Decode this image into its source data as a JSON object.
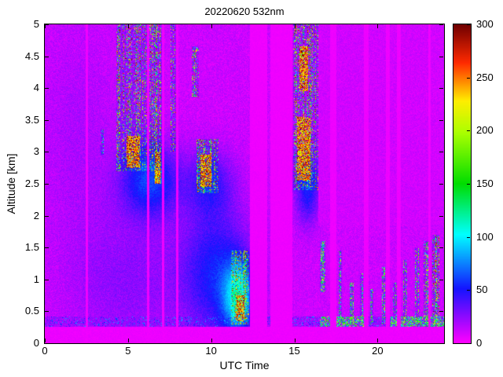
{
  "chart_data": {
    "type": "heatmap",
    "title": "20220620 532nm",
    "xlabel": "UTC Time",
    "ylabel": "Altitude [km]",
    "xlim": [
      0,
      24
    ],
    "ylim": [
      0,
      5
    ],
    "xticks": [
      0,
      5,
      10,
      15,
      20
    ],
    "yticks": [
      0,
      0.5,
      1,
      1.5,
      2,
      2.5,
      3,
      3.5,
      4,
      4.5,
      5
    ],
    "grid": false,
    "legend": "none",
    "colorbar": {
      "position": "right",
      "min": 0,
      "max": 300,
      "ticks": [
        0,
        50,
        100,
        150,
        200,
        250,
        300
      ]
    },
    "colormap": [
      [
        0.0,
        "#ff00ff"
      ],
      [
        0.17,
        "#1414ff"
      ],
      [
        0.34,
        "#00ffff"
      ],
      [
        0.5,
        "#00dd00"
      ],
      [
        0.66,
        "#aaff00"
      ],
      [
        0.76,
        "#ffee00"
      ],
      [
        0.88,
        "#ff2a00"
      ],
      [
        1.0,
        "#700000"
      ]
    ],
    "background_value_range": [
      4,
      18
    ],
    "features": {
      "gaps": [
        {
          "t0": 2.45,
          "t1": 2.62
        },
        {
          "t0": 6.15,
          "t1": 6.3
        },
        {
          "t0": 7.05,
          "t1": 7.2
        },
        {
          "t0": 7.9,
          "t1": 8.05
        },
        {
          "t0": 12.35,
          "t1": 13.35
        },
        {
          "t0": 13.55,
          "t1": 14.9
        },
        {
          "t0": 17.15,
          "t1": 17.55
        },
        {
          "t0": 19.2,
          "t1": 19.45
        },
        {
          "t0": 20.5,
          "t1": 20.75
        },
        {
          "t0": 21.15,
          "t1": 21.4
        },
        {
          "t0": 23.05,
          "t1": 23.2
        }
      ],
      "haze": [
        {
          "tc": 6.3,
          "zc": 2.55,
          "tw": 1.7,
          "zw": 0.55,
          "amp": 50
        },
        {
          "tc": 10.3,
          "zc": 1.1,
          "tw": 2.0,
          "zw": 1.0,
          "amp": 40
        },
        {
          "tc": 11.6,
          "zc": 0.7,
          "tw": 0.9,
          "zw": 0.55,
          "amp": 75
        },
        {
          "tc": 9.9,
          "zc": 2.5,
          "tw": 1.4,
          "zw": 0.5,
          "amp": 30
        },
        {
          "tc": 15.8,
          "zc": 2.4,
          "tw": 0.7,
          "zw": 0.5,
          "amp": 40
        },
        {
          "tc": 5.0,
          "zc": 1.0,
          "tw": 3.5,
          "zw": 1.1,
          "amp": 14
        },
        {
          "tc": 2.0,
          "zc": 3.2,
          "tw": 2.2,
          "zw": 1.6,
          "amp": 7
        }
      ],
      "clouds": [
        {
          "t0": 4.3,
          "t1": 6.6,
          "z0": 2.7,
          "z1": 5.0,
          "density": 0.45,
          "vmin": 50,
          "vmax": 300
        },
        {
          "t0": 6.55,
          "t1": 7.15,
          "z0": 2.5,
          "z1": 5.0,
          "density": 0.5,
          "vmin": 50,
          "vmax": 300
        },
        {
          "t0": 7.55,
          "t1": 8.0,
          "z0": 3.0,
          "z1": 5.0,
          "density": 0.45,
          "vmin": 50,
          "vmax": 300
        },
        {
          "t0": 8.85,
          "t1": 9.25,
          "z0": 3.85,
          "z1": 4.65,
          "density": 0.5,
          "vmin": 60,
          "vmax": 280
        },
        {
          "t0": 9.1,
          "t1": 10.45,
          "z0": 2.35,
          "z1": 3.2,
          "density": 0.55,
          "vmin": 60,
          "vmax": 300
        },
        {
          "t0": 11.2,
          "t1": 12.3,
          "z0": 0.3,
          "z1": 1.45,
          "density": 0.6,
          "vmin": 60,
          "vmax": 300
        },
        {
          "t0": 14.95,
          "t1": 16.45,
          "z0": 2.4,
          "z1": 5.0,
          "density": 0.5,
          "vmin": 50,
          "vmax": 300
        },
        {
          "t0": 16.55,
          "t1": 16.85,
          "z0": 0.8,
          "z1": 1.6,
          "density": 0.5,
          "vmin": 60,
          "vmax": 220
        },
        {
          "t0": 17.65,
          "t1": 17.85,
          "z0": 0.3,
          "z1": 1.45,
          "density": 0.5,
          "vmin": 50,
          "vmax": 230
        },
        {
          "t0": 18.35,
          "t1": 18.55,
          "z0": 0.3,
          "z1": 0.95,
          "density": 0.5,
          "vmin": 50,
          "vmax": 220
        },
        {
          "t0": 18.95,
          "t1": 19.15,
          "z0": 0.3,
          "z1": 1.1,
          "density": 0.5,
          "vmin": 50,
          "vmax": 220
        },
        {
          "t0": 19.55,
          "t1": 19.75,
          "z0": 0.3,
          "z1": 0.85,
          "density": 0.45,
          "vmin": 50,
          "vmax": 200
        },
        {
          "t0": 20.25,
          "t1": 20.45,
          "z0": 0.3,
          "z1": 1.2,
          "density": 0.5,
          "vmin": 50,
          "vmax": 230
        },
        {
          "t0": 20.95,
          "t1": 21.15,
          "z0": 0.3,
          "z1": 0.95,
          "density": 0.45,
          "vmin": 50,
          "vmax": 210
        },
        {
          "t0": 21.55,
          "t1": 21.8,
          "z0": 0.3,
          "z1": 1.3,
          "density": 0.5,
          "vmin": 50,
          "vmax": 230
        },
        {
          "t0": 22.25,
          "t1": 22.55,
          "z0": 0.3,
          "z1": 1.5,
          "density": 0.5,
          "vmin": 50,
          "vmax": 260
        },
        {
          "t0": 22.75,
          "t1": 23.05,
          "z0": 0.3,
          "z1": 1.6,
          "density": 0.5,
          "vmin": 50,
          "vmax": 260
        },
        {
          "t0": 23.3,
          "t1": 23.7,
          "z0": 0.3,
          "z1": 1.7,
          "density": 0.55,
          "vmin": 50,
          "vmax": 300
        },
        {
          "t0": 3.35,
          "t1": 3.55,
          "z0": 2.95,
          "z1": 3.35,
          "density": 0.4,
          "vmin": 40,
          "vmax": 160
        }
      ],
      "cores": [
        {
          "t0": 4.9,
          "t1": 5.7,
          "z0": 2.75,
          "z1": 3.25
        },
        {
          "t0": 6.6,
          "t1": 6.95,
          "z0": 2.5,
          "z1": 3.0
        },
        {
          "t0": 9.35,
          "t1": 10.0,
          "z0": 2.45,
          "z1": 2.95
        },
        {
          "t0": 11.55,
          "t1": 12.0,
          "z0": 0.35,
          "z1": 0.75
        },
        {
          "t0": 15.15,
          "t1": 15.95,
          "z0": 2.55,
          "z1": 3.55
        },
        {
          "t0": 15.3,
          "t1": 15.85,
          "z0": 3.95,
          "z1": 4.65
        }
      ],
      "surface_band": {
        "z0": 0.26,
        "z1": 0.42,
        "vmin": 10,
        "vmax": 28
      },
      "surface_green": [
        {
          "t0": 16.55,
          "t1": 19.2
        },
        {
          "t0": 20.8,
          "t1": 24
        }
      ]
    }
  }
}
